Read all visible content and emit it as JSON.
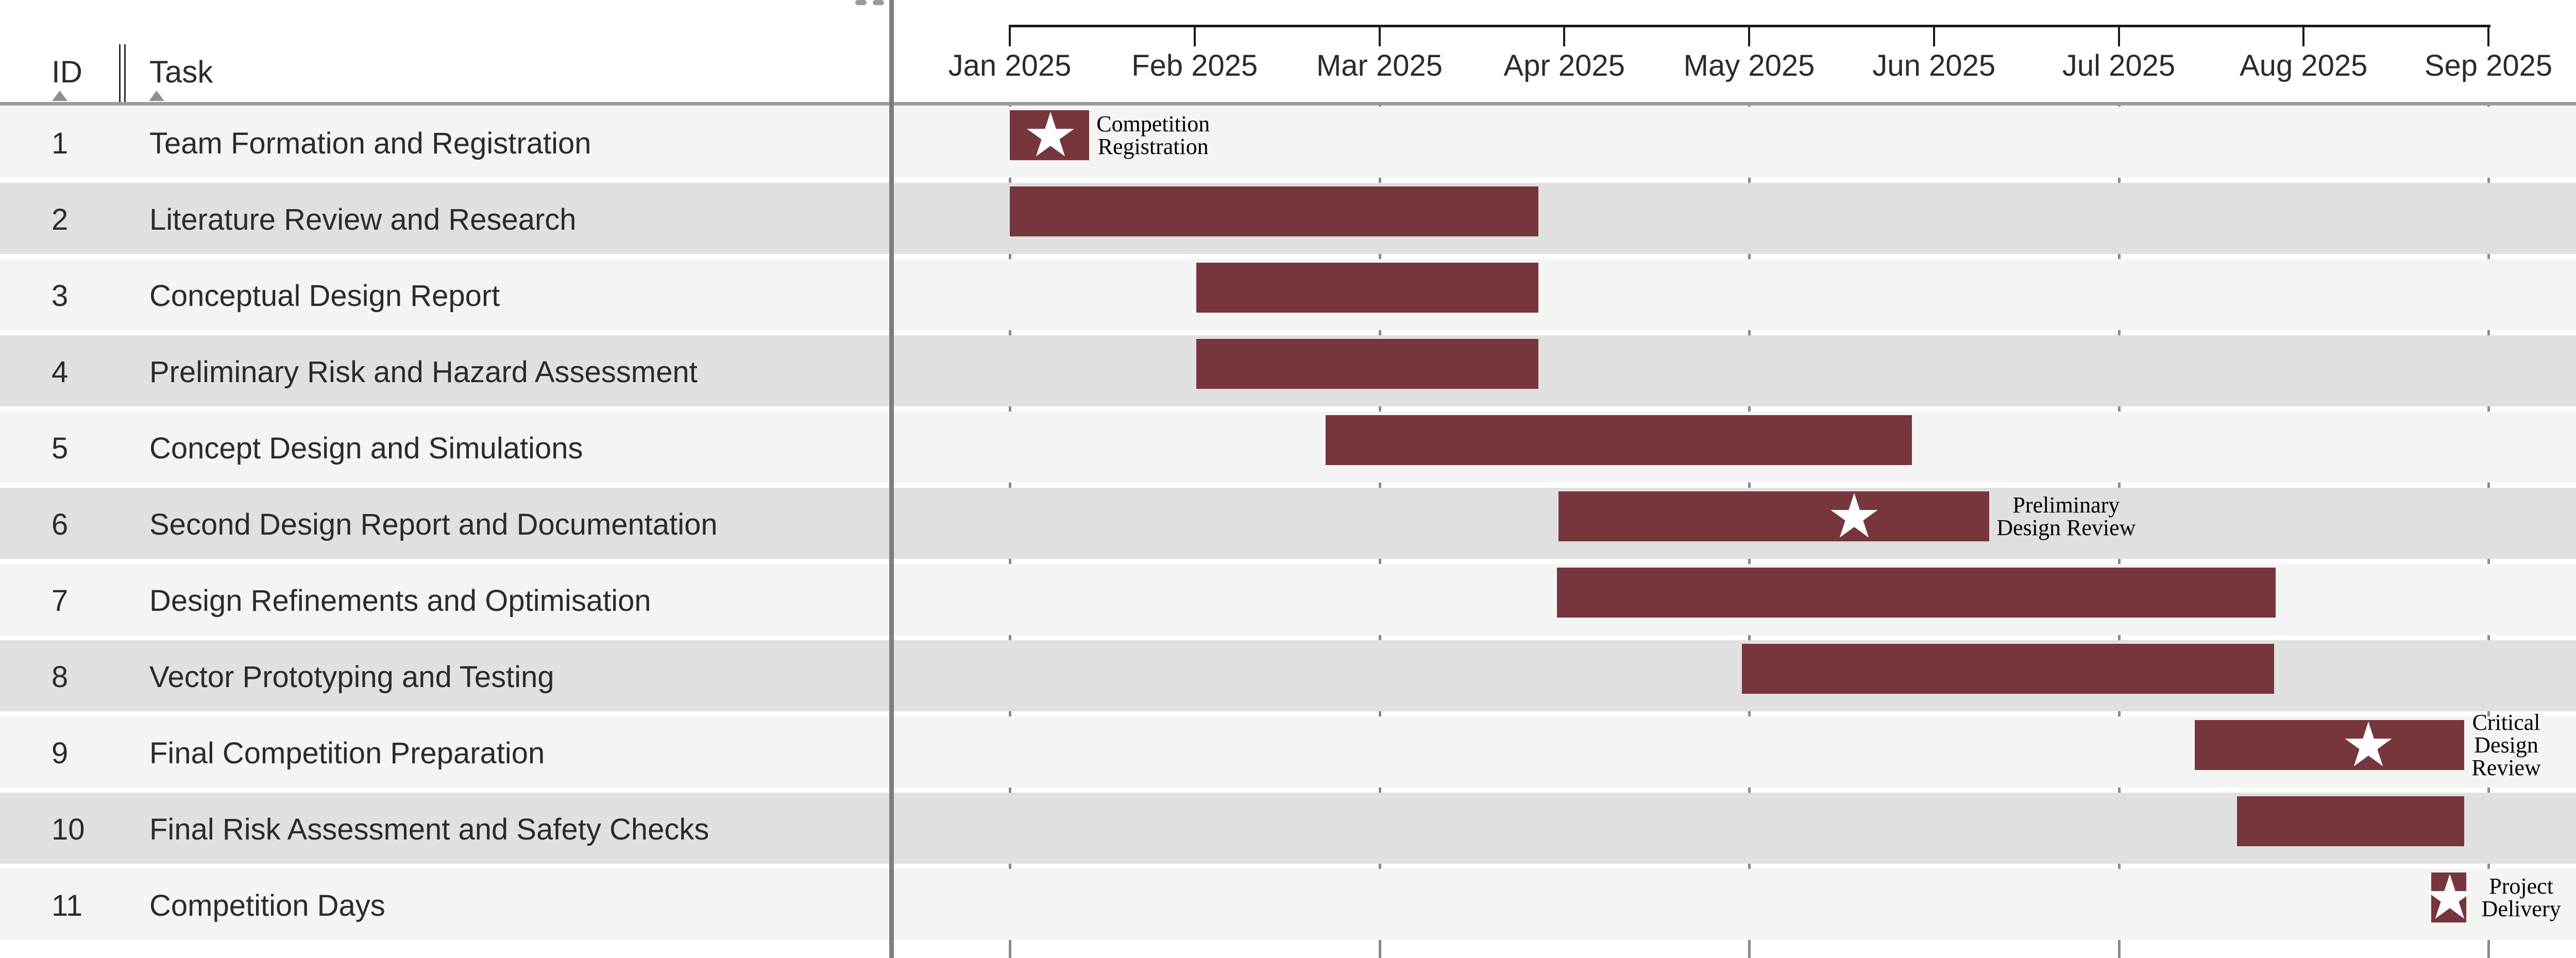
{
  "table": {
    "columns": [
      {
        "label": "ID"
      },
      {
        "label": "Task"
      }
    ]
  },
  "colors": {
    "bar": "#77353D",
    "star": "#FFFFFF",
    "row_light": "#F4F4F4",
    "row_dark": "#E0E0E0",
    "gridline": "#8A8A8A",
    "axis": "#1A1A1A",
    "text": "#2B2B2B",
    "milestone_label": "#000000"
  },
  "chart_data": {
    "type": "bar",
    "variant": "gantt",
    "x_axis": {
      "tick_labels": [
        "Jan 2025",
        "Feb 2025",
        "Mar 2025",
        "Apr 2025",
        "May 2025",
        "Jun 2025",
        "Jul 2025",
        "Aug 2025",
        "Sep 2025"
      ],
      "range_months": [
        0,
        8
      ],
      "gridline_tick_indexes": [
        0,
        2,
        4,
        6,
        8
      ],
      "unit": "months after Jan 1 2025"
    },
    "legend": null,
    "grid": "vertical-alternate-months",
    "tasks": [
      {
        "id": "1",
        "name": "Team Formation and Registration",
        "start_m": 0.0,
        "end_m": 0.43,
        "milestone": {
          "star_m": 0.22,
          "label_lines": [
            "Competition",
            "Registration"
          ]
        }
      },
      {
        "id": "2",
        "name": "Literature Review and Research",
        "start_m": 0.0,
        "end_m": 2.86,
        "milestone": null
      },
      {
        "id": "3",
        "name": "Conceptual Design Report",
        "start_m": 1.01,
        "end_m": 2.86,
        "milestone": null
      },
      {
        "id": "4",
        "name": "Preliminary Risk and Hazard Assessment",
        "start_m": 1.01,
        "end_m": 2.86,
        "milestone": null
      },
      {
        "id": "5",
        "name": "Concept Design and Simulations",
        "start_m": 1.71,
        "end_m": 4.88,
        "milestone": null
      },
      {
        "id": "6",
        "name": "Second Design Report and Documentation",
        "start_m": 2.97,
        "end_m": 5.3,
        "milestone": {
          "star_m": 4.57,
          "label_lines": [
            "Preliminary",
            "Design Review"
          ]
        }
      },
      {
        "id": "7",
        "name": "Design Refinements and Optimisation",
        "start_m": 2.96,
        "end_m": 6.85,
        "milestone": null
      },
      {
        "id": "8",
        "name": "Vector Prototyping and Testing",
        "start_m": 3.96,
        "end_m": 6.84,
        "milestone": null
      },
      {
        "id": "9",
        "name": "Final Competition Preparation",
        "start_m": 6.41,
        "end_m": 7.87,
        "milestone": {
          "star_m": 7.35,
          "label_lines": [
            "Critical",
            "Design",
            "Review"
          ]
        }
      },
      {
        "id": "10",
        "name": "Final Risk Assessment and Safety Checks",
        "start_m": 6.64,
        "end_m": 7.87,
        "milestone": null
      },
      {
        "id": "11",
        "name": "Competition Days",
        "start_m": 7.69,
        "end_m": 7.88,
        "milestone": {
          "star_m": 7.79,
          "label_lines": [
            "Project",
            "Delivery"
          ]
        }
      }
    ]
  }
}
